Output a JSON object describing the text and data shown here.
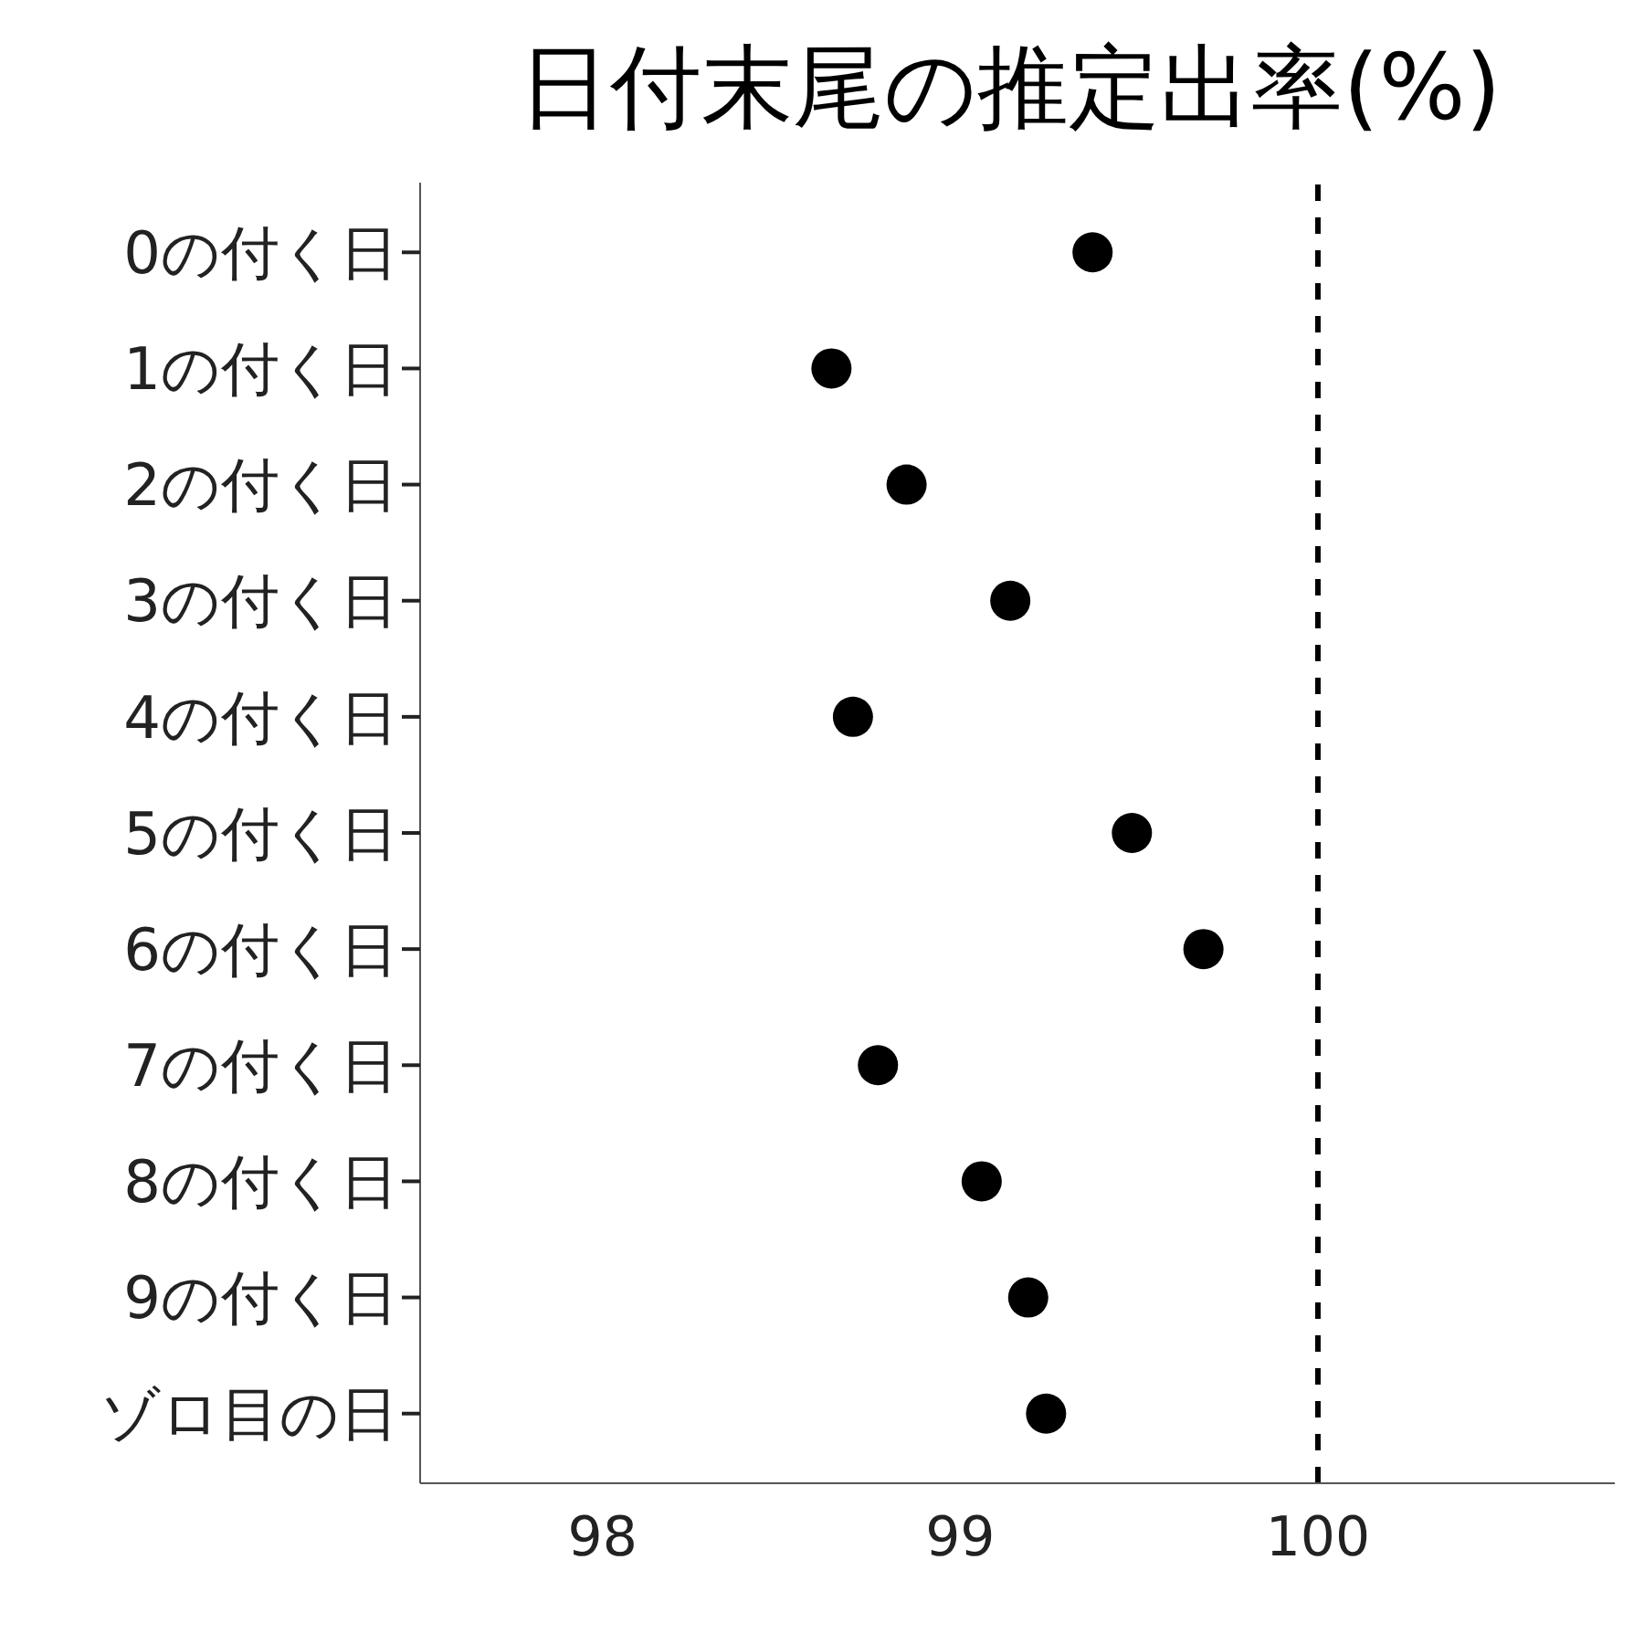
{
  "chart_data": {
    "type": "scatter",
    "title": "日付末尾の推定出率(%)",
    "categories": [
      "0の付く日",
      "1の付く日",
      "2の付く日",
      "3の付く日",
      "4の付く日",
      "5の付く日",
      "6の付く日",
      "7の付く日",
      "8の付く日",
      "9の付く日",
      "ゾロ目の日"
    ],
    "orientation": "horizontal",
    "values": [
      99.37,
      98.64,
      98.85,
      99.14,
      98.7,
      99.48,
      99.68,
      98.77,
      99.06,
      99.19,
      99.24
    ],
    "color": "#000000",
    "marker": "circle",
    "xlim": [
      97.49,
      100.83
    ],
    "xticks": [
      98,
      99,
      100
    ],
    "ref_lines": [
      {
        "axis": "x",
        "value": 100,
        "color": "#000000",
        "line_style": "dashed"
      }
    ],
    "grid": false
  }
}
